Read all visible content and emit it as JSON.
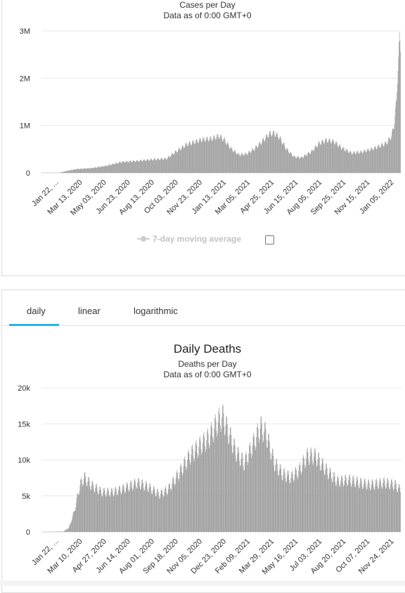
{
  "chart_data": [
    {
      "type": "bar",
      "title": "",
      "subtitle": "Cases per Day",
      "subtitle2": "Data as of 0:00 GMT+0",
      "color": "#999999",
      "ylim": [
        0,
        3000000
      ],
      "yticks": [
        {
          "v": 0,
          "label": "0"
        },
        {
          "v": 1000000,
          "label": "1M"
        },
        {
          "v": 2000000,
          "label": "2M"
        },
        {
          "v": 3000000,
          "label": "3M"
        }
      ],
      "x_tick_labels": [
        "Jan 22, ...",
        "Mar 13, 2020",
        "May 03, 2020",
        "Jun 23, 2020",
        "Aug 13, 2020",
        "Oct 03, 2020",
        "Nov 23, 2020",
        "Jan 13, 2021",
        "Mar 05, 2021",
        "Apr 25, 2021",
        "Jun 15, 2021",
        "Aug 05, 2021",
        "Sep 25, 2021",
        "Nov 15, 2021",
        "Jan 05, 2022"
      ],
      "anchors": [
        [
          0,
          0
        ],
        [
          35,
          2000
        ],
        [
          50,
          40000
        ],
        [
          70,
          80000
        ],
        [
          100,
          100000
        ],
        [
          130,
          150000
        ],
        [
          160,
          230000
        ],
        [
          190,
          250000
        ],
        [
          220,
          280000
        ],
        [
          250,
          300000
        ],
        [
          265,
          420000
        ],
        [
          290,
          600000
        ],
        [
          305,
          650000
        ],
        [
          320,
          700000
        ],
        [
          340,
          720000
        ],
        [
          355,
          780000
        ],
        [
          365,
          700000
        ],
        [
          380,
          500000
        ],
        [
          395,
          380000
        ],
        [
          410,
          400000
        ],
        [
          425,
          500000
        ],
        [
          440,
          650000
        ],
        [
          455,
          820000
        ],
        [
          465,
          840000
        ],
        [
          475,
          760000
        ],
        [
          490,
          500000
        ],
        [
          505,
          340000
        ],
        [
          520,
          320000
        ],
        [
          540,
          450000
        ],
        [
          555,
          620000
        ],
        [
          570,
          690000
        ],
        [
          585,
          660000
        ],
        [
          600,
          530000
        ],
        [
          620,
          420000
        ],
        [
          640,
          440000
        ],
        [
          660,
          500000
        ],
        [
          675,
          560000
        ],
        [
          690,
          630000
        ],
        [
          700,
          780000
        ],
        [
          705,
          1000000
        ],
        [
          710,
          1500000
        ],
        [
          713,
          2300000
        ],
        [
          716,
          2750000
        ],
        [
          718,
          2650000
        ]
      ],
      "weekly_amplitude": 0.08,
      "legend": {
        "label": "7-day moving average",
        "checked": false
      }
    },
    {
      "type": "bar",
      "title": "Daily Deaths",
      "subtitle": "Deaths per Day",
      "subtitle2": "Data as of 0:00 GMT+0",
      "color": "#999999",
      "ylim": [
        0,
        20000
      ],
      "yticks": [
        {
          "v": 0,
          "label": "0"
        },
        {
          "v": 5000,
          "label": "5k"
        },
        {
          "v": 10000,
          "label": "10k"
        },
        {
          "v": 15000,
          "label": "15k"
        },
        {
          "v": 20000,
          "label": "20k"
        }
      ],
      "x_tick_labels": [
        "Jan 22, ...",
        "Mar 10, 2020",
        "Apr 27, 2020",
        "Jun 14, 2020",
        "Aug 01, 2020",
        "Sep 18, 2020",
        "Nov 05, 2020",
        "Dec 23, 2020",
        "Feb 09, 2021",
        "Mar 29, 2021",
        "May 16, 2021",
        "Jul 03, 2021",
        "Aug 20, 2021",
        "Oct 07, 2021",
        "Nov 24, 2021"
      ],
      "anchors": [
        [
          0,
          0
        ],
        [
          40,
          50
        ],
        [
          50,
          600
        ],
        [
          60,
          3000
        ],
        [
          70,
          6500
        ],
        [
          78,
          7500
        ],
        [
          90,
          6500
        ],
        [
          110,
          5500
        ],
        [
          130,
          5500
        ],
        [
          150,
          6000
        ],
        [
          175,
          6800
        ],
        [
          195,
          6200
        ],
        [
          215,
          5200
        ],
        [
          230,
          5800
        ],
        [
          250,
          8000
        ],
        [
          270,
          10500
        ],
        [
          290,
          12000
        ],
        [
          305,
          13000
        ],
        [
          320,
          15000
        ],
        [
          330,
          16000
        ],
        [
          340,
          14000
        ],
        [
          355,
          11000
        ],
        [
          370,
          9500
        ],
        [
          385,
          12000
        ],
        [
          400,
          14500
        ],
        [
          410,
          13500
        ],
        [
          425,
          9500
        ],
        [
          440,
          8000
        ],
        [
          455,
          7500
        ],
        [
          470,
          8500
        ],
        [
          485,
          10500
        ],
        [
          500,
          10500
        ],
        [
          520,
          8500
        ],
        [
          540,
          7000
        ],
        [
          560,
          7200
        ],
        [
          580,
          6800
        ],
        [
          600,
          6500
        ],
        [
          625,
          6800
        ],
        [
          645,
          6500
        ],
        [
          655,
          5800
        ]
      ],
      "weekly_amplitude": 0.12
    }
  ],
  "tabs": [
    {
      "label": "daily",
      "active": true
    },
    {
      "label": "linear",
      "active": false
    },
    {
      "label": "logarithmic",
      "active": false
    }
  ]
}
